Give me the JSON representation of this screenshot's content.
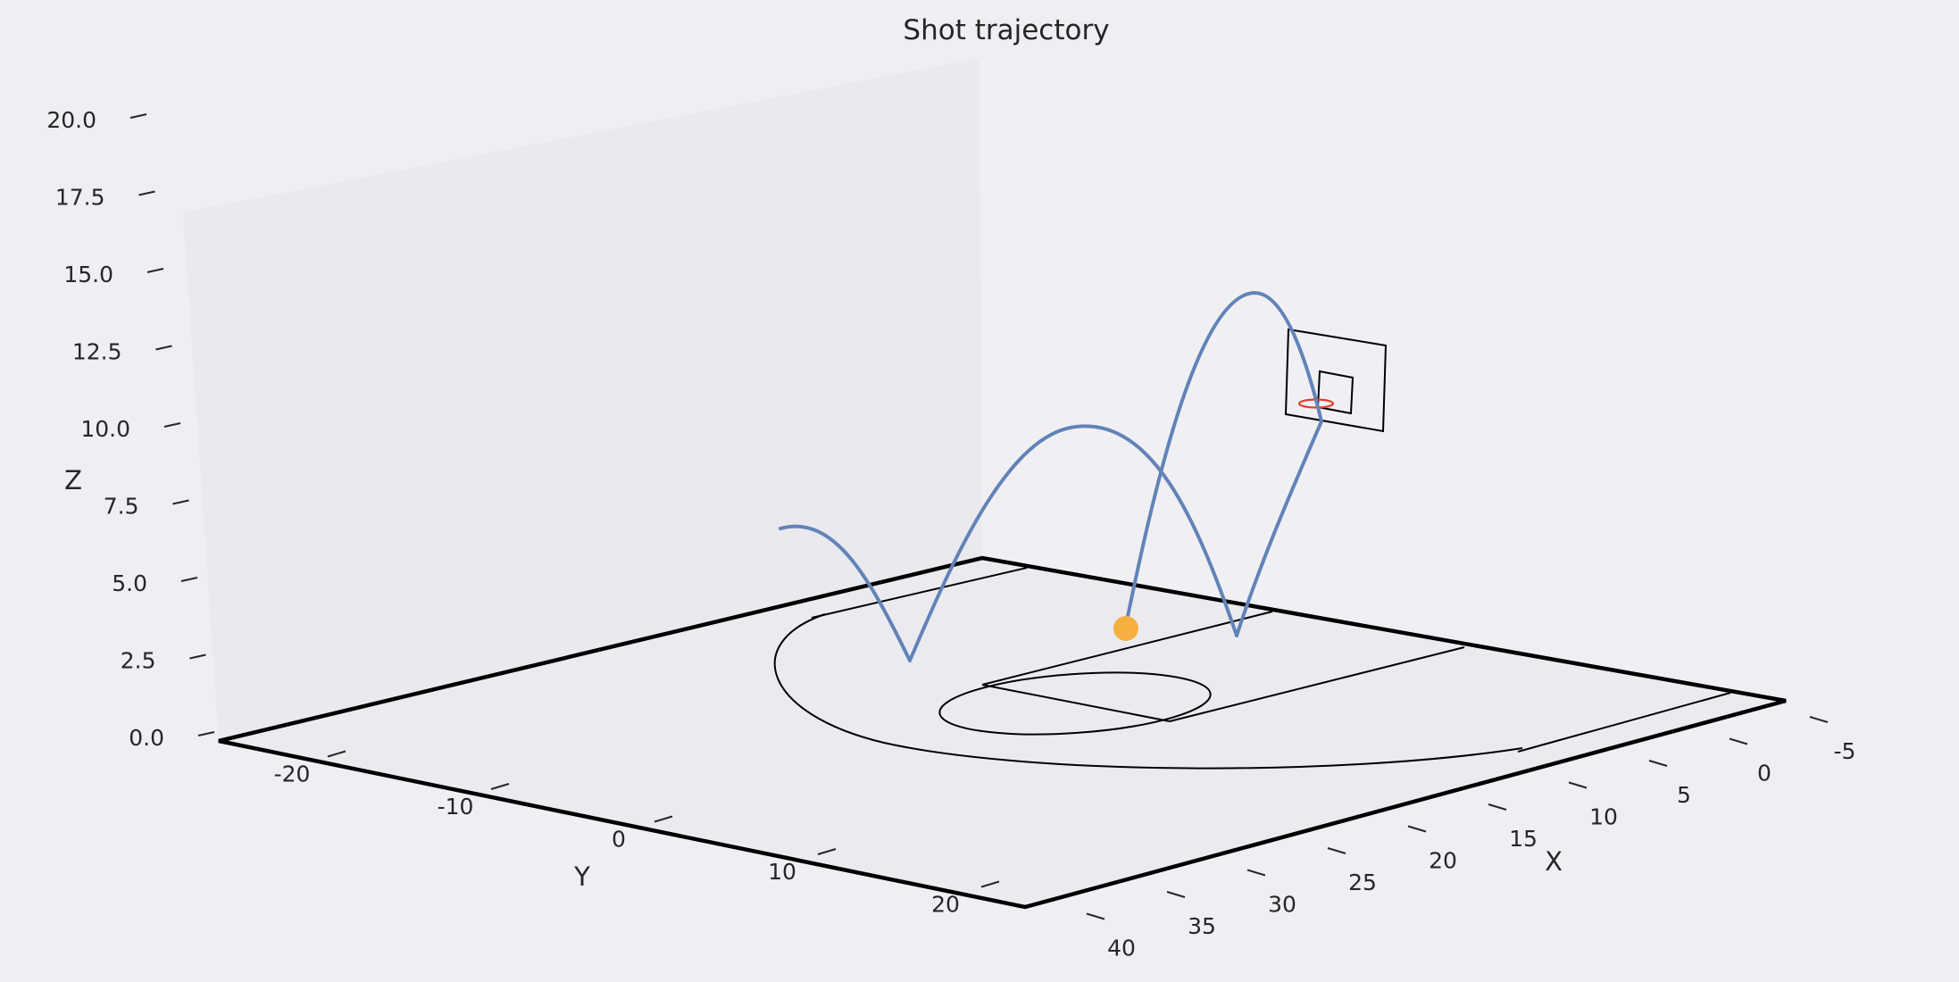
{
  "chart_data": {
    "type": "3d-line",
    "title": "Shot trajectory",
    "xlabel": "X",
    "ylabel": "Y",
    "zlabel": "Z",
    "xlim": [
      -5,
      42
    ],
    "ylim": [
      -25,
      25
    ],
    "zlim": [
      0,
      20
    ],
    "x_ticks": [
      "-5",
      "0",
      "5",
      "10",
      "15",
      "20",
      "25",
      "30",
      "35",
      "40"
    ],
    "y_ticks": [
      "-20",
      "-10",
      "0",
      "10",
      "20"
    ],
    "z_ticks": [
      "0.0",
      "2.5",
      "5.0",
      "7.5",
      "10.0",
      "12.5",
      "15.0",
      "17.5",
      "20.0"
    ],
    "grid": false,
    "series": [
      {
        "color": "#6283b8",
        "description_free": true,
        "points": [
          [
            17.8,
            0,
            3.7
          ],
          [
            11.8,
            1.3,
            14.5
          ],
          [
            6.3,
            2.6,
            16.2
          ],
          [
            3.3,
            3.5,
            13.2
          ],
          [
            9.5,
            5.2,
            1.4
          ],
          [
            18.6,
            7.2,
            10.2
          ],
          [
            26.3,
            8.9,
            13.5
          ],
          [
            30.4,
            10.2,
            7.8
          ],
          [
            30.4,
            11.7,
            0.0
          ],
          [
            26.5,
            14.5,
            6.5
          ],
          [
            23.0,
            17.0,
            8.3
          ]
        ]
      }
    ],
    "ball": {
      "position": [
        17.8,
        0,
        3.7
      ],
      "color": "#f5b041"
    },
    "rim_color": "#e03c28"
  }
}
